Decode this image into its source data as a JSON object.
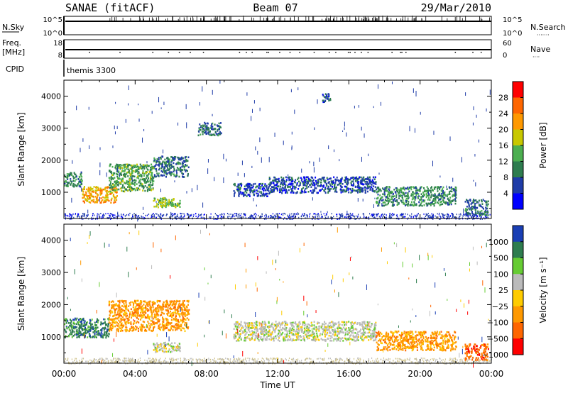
{
  "header": {
    "station": "SANAE (fitACF)",
    "beam": "Beam 07",
    "date": "29/Mar/2010"
  },
  "status_panels": {
    "nsky_label": "N.Sky",
    "nsearch_label": "N.Search",
    "freq_label_line1": "Freq.",
    "freq_label_line2": "[MHz]",
    "nave_label": "Nave",
    "cpid_label": "CPID",
    "cpid_value": "themis 3300",
    "nsky_ticks": [
      "10^5",
      "10^0"
    ],
    "nsearch_ticks": [
      "10^5",
      "10^0"
    ],
    "freq_ticks": [
      "18",
      "8"
    ],
    "nave_ticks": [
      "60",
      "0"
    ]
  },
  "colors": {
    "power": [
      "#0000ff",
      "#1f3ca8",
      "#2e7d4f",
      "#4caf50",
      "#c8c800",
      "#ff9900",
      "#ff6600",
      "#ff0000"
    ],
    "velocity": [
      "#1a3fb5",
      "#2e7d4f",
      "#66cc33",
      "#bbbbbb",
      "#ffcc00",
      "#ff9900",
      "#ff6600",
      "#ff0000"
    ]
  },
  "chart_data": [
    {
      "type": "heatmap",
      "title": "",
      "xlabel": "Time UT",
      "ylabel": "Slant Range [km]",
      "xlim": [
        "00:00",
        "24:00"
      ],
      "ylim": [
        180,
        4500
      ],
      "x_ticks": [
        "00:00",
        "04:00",
        "08:00",
        "12:00",
        "16:00",
        "20:00",
        "00:00"
      ],
      "y_ticks": [
        "1000",
        "2000",
        "3000",
        "4000"
      ],
      "colorbar": {
        "label": "Power [dB]",
        "ticks": [
          "4",
          "8",
          "12",
          "16",
          "20",
          "24",
          "28"
        ],
        "range": [
          0,
          30
        ]
      },
      "echo_regions": [
        {
          "t_start": 0.0,
          "t_end": 1.0,
          "range_low": 1200,
          "range_high": 1650,
          "level": 10
        },
        {
          "t_start": 1.0,
          "t_end": 3.0,
          "range_low": 700,
          "range_high": 1200,
          "level": 20
        },
        {
          "t_start": 2.5,
          "t_end": 5.0,
          "range_low": 1050,
          "range_high": 1900,
          "level": 12
        },
        {
          "t_start": 5.0,
          "t_end": 7.0,
          "range_low": 1500,
          "range_high": 2150,
          "level": 8
        },
        {
          "t_start": 5.0,
          "t_end": 6.5,
          "range_low": 550,
          "range_high": 850,
          "level": 14
        },
        {
          "t_start": 7.5,
          "t_end": 8.8,
          "range_low": 2800,
          "range_high": 3200,
          "level": 8
        },
        {
          "t_start": 9.5,
          "t_end": 11.5,
          "range_low": 900,
          "range_high": 1300,
          "level": 6
        },
        {
          "t_start": 11.5,
          "t_end": 17.5,
          "range_low": 1000,
          "range_high": 1500,
          "level": 6
        },
        {
          "t_start": 14.5,
          "t_end": 15.0,
          "range_low": 3800,
          "range_high": 4100,
          "level": 6
        },
        {
          "t_start": 17.5,
          "t_end": 22.0,
          "range_low": 600,
          "range_high": 1200,
          "level": 10
        },
        {
          "t_start": 22.5,
          "t_end": 23.8,
          "range_low": 300,
          "range_high": 800,
          "level": 8
        }
      ]
    },
    {
      "type": "heatmap",
      "title": "",
      "xlabel": "Time UT",
      "ylabel": "Slant Range [km]",
      "xlim": [
        "00:00",
        "24:00"
      ],
      "ylim": [
        180,
        4500
      ],
      "x_ticks": [
        "00:00",
        "04:00",
        "08:00",
        "12:00",
        "16:00",
        "20:00",
        "00:00"
      ],
      "y_ticks": [
        "1000",
        "2000",
        "3000",
        "4000"
      ],
      "colorbar": {
        "label": "Velocity [m s⁻¹]",
        "ticks": [
          "1000",
          "500",
          "100",
          "25",
          "−25",
          "−100",
          "−500",
          "−1000"
        ]
      },
      "echo_regions": [
        {
          "t_start": 0.0,
          "t_end": 2.5,
          "range_low": 1000,
          "range_high": 1600,
          "velocity": 100
        },
        {
          "t_start": 2.5,
          "t_end": 7.0,
          "range_low": 1200,
          "range_high": 2150,
          "velocity": -100
        },
        {
          "t_start": 5.0,
          "t_end": 6.5,
          "range_low": 550,
          "range_high": 850,
          "velocity": 0
        },
        {
          "t_start": 9.5,
          "t_end": 17.5,
          "range_low": 900,
          "range_high": 1500,
          "velocity": 0
        },
        {
          "t_start": 17.5,
          "t_end": 22.0,
          "range_low": 600,
          "range_high": 1200,
          "velocity": -100
        },
        {
          "t_start": 22.5,
          "t_end": 23.8,
          "range_low": 300,
          "range_high": 800,
          "velocity": -500
        }
      ]
    }
  ]
}
